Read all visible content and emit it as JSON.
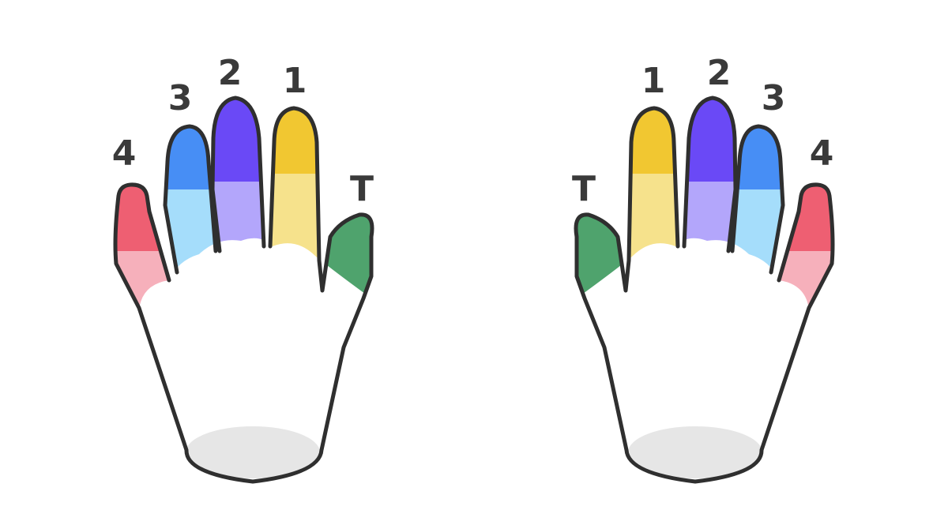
{
  "colors": {
    "thumb": {
      "tip": "#4fa36d",
      "base": "#4fa36d"
    },
    "finger1": {
      "tip": "#f1c731",
      "base": "#f6e28c"
    },
    "finger2": {
      "tip": "#6a49f6",
      "base": "#b3a6fb"
    },
    "finger3": {
      "tip": "#478ef5",
      "base": "#a5ddfb"
    },
    "finger4": {
      "tip": "#ee5f72",
      "base": "#f6b0bb"
    },
    "wrist": "#e6e6e6",
    "outline": "#2f2f2f"
  },
  "left_hand": {
    "labels": {
      "thumb": "T",
      "finger1": "1",
      "finger2": "2",
      "finger3": "3",
      "finger4": "4"
    }
  },
  "right_hand": {
    "labels": {
      "thumb": "T",
      "finger1": "1",
      "finger2": "2",
      "finger3": "3",
      "finger4": "4"
    }
  }
}
